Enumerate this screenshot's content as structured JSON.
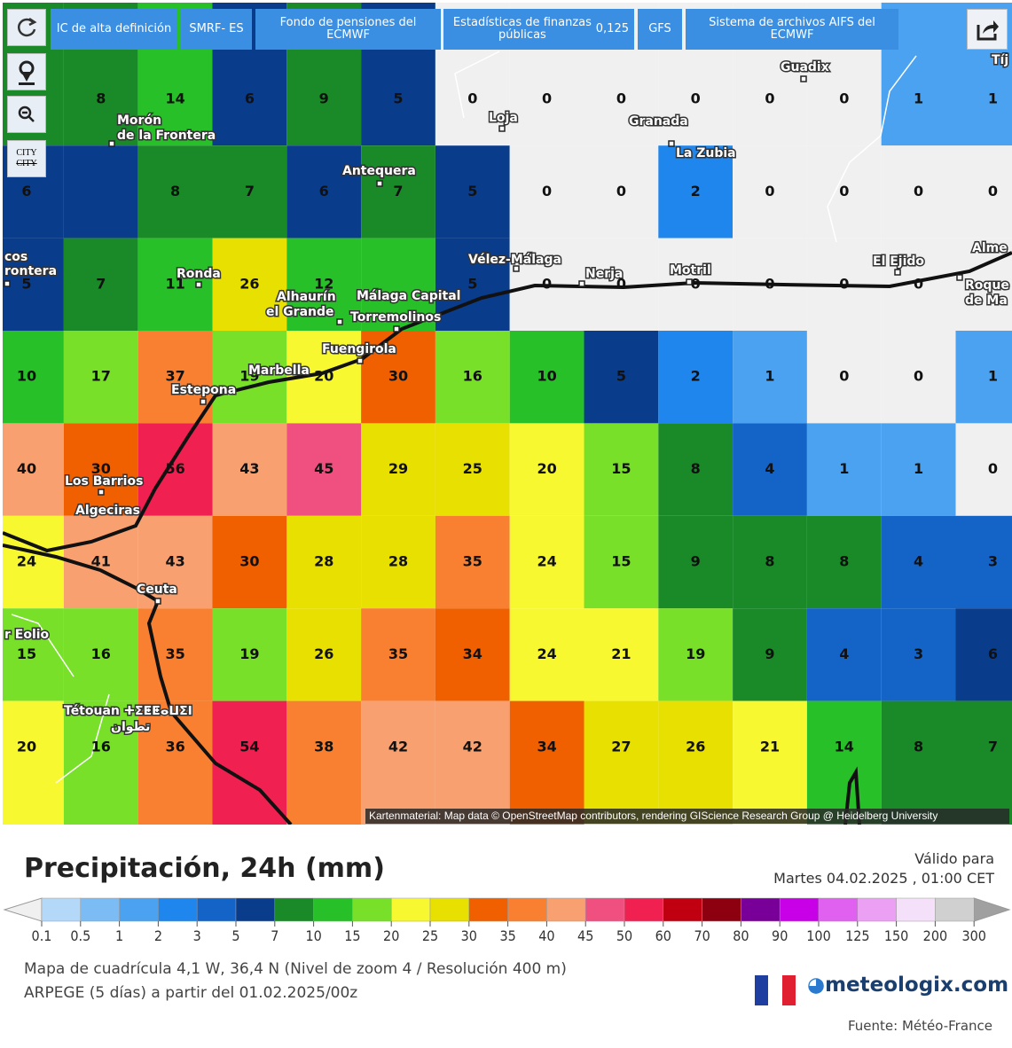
{
  "toolbar": {
    "tabs": [
      "IC de alta definición",
      "SMRF- ES",
      "Fondo de pensiones del ECMWF",
      [
        "Estadísticas de finanzas públicas",
        "0,125"
      ],
      "GFS",
      "Sistema de archivos AIFS del ECMWF"
    ],
    "city_button": [
      "CITY",
      "CITY"
    ]
  },
  "map": {
    "grid": [
      [
        null,
        8,
        14,
        6,
        9,
        5,
        0,
        0,
        0,
        0,
        0,
        0,
        1,
        1
      ],
      [
        6,
        null,
        8,
        7,
        6,
        7,
        5,
        0,
        0,
        2,
        0,
        0,
        0,
        0
      ],
      [
        5,
        7,
        11,
        26,
        12,
        null,
        5,
        0,
        0,
        0,
        0,
        0,
        0,
        null
      ],
      [
        10,
        17,
        37,
        19,
        20,
        30,
        16,
        10,
        5,
        2,
        1,
        0,
        0,
        1
      ],
      [
        40,
        30,
        56,
        43,
        45,
        29,
        25,
        20,
        15,
        8,
        4,
        1,
        1,
        0
      ],
      [
        24,
        41,
        43,
        30,
        28,
        28,
        35,
        24,
        15,
        9,
        8,
        8,
        4,
        3
      ],
      [
        15,
        16,
        35,
        19,
        26,
        35,
        34,
        24,
        21,
        19,
        9,
        4,
        3,
        6
      ],
      [
        20,
        16,
        36,
        54,
        38,
        42,
        42,
        34,
        27,
        26,
        21,
        14,
        8,
        7
      ]
    ],
    "cities": [
      [
        "Morón",
        "de la Frontera"
      ],
      [
        "Antequera"
      ],
      [
        "Loja"
      ],
      [
        "Granada"
      ],
      [
        "La Zubia"
      ],
      [
        "Guadix"
      ],
      [
        "Ronda"
      ],
      [
        "Alhaurín",
        "el Grande"
      ],
      [
        "Málaga Capital"
      ],
      [
        "Torremolinos"
      ],
      [
        "Vélez-Málaga"
      ],
      [
        "Nerja"
      ],
      [
        "Motril"
      ],
      [
        "El Ejido"
      ],
      [
        "Fuengirola"
      ],
      [
        "Marbella"
      ],
      [
        "Estepona"
      ],
      [
        "Los Barrios"
      ],
      [
        "Algeciras"
      ],
      [
        "Ceuta"
      ],
      [
        "Tétouan ⵜⵉⵟⵟⴰⵡⵉⵏ",
        "تطوان"
      ],
      [
        "cos",
        "rontera"
      ],
      [
        "Alme"
      ],
      [
        "Roque",
        "de Ma"
      ],
      [
        "Tíj"
      ],
      [
        "r Eolio"
      ]
    ],
    "attribution": "Kartenmaterial: Map data © OpenStreetMap contributors, rendering GIScience Research Group @ Heidelberg University"
  },
  "legend": {
    "title": "Precipitación, 24h (mm)",
    "ticks": [
      0.1,
      0.5,
      1,
      2,
      3,
      5,
      7,
      10,
      15,
      20,
      25,
      30,
      35,
      40,
      45,
      50,
      60,
      70,
      80,
      90,
      100,
      125,
      150,
      200,
      300
    ],
    "colors": [
      "#b4d8f8",
      "#7cbcf4",
      "#4aa2f0",
      "#1e86ec",
      "#1464c8",
      "#0a3c8c",
      "#1a8a28",
      "#28c028",
      "#78e028",
      "#f8f830",
      "#e8e000",
      "#f06000",
      "#f88030",
      "#f8a070",
      "#f05080",
      "#f02050",
      "#c00010",
      "#8c0010",
      "#780098",
      "#c800e8",
      "#e060f0",
      "#eca0f4",
      "#f4e0f8",
      "#d0d0d0"
    ],
    "below_color": "#f0f0f0",
    "above_color": "#a0a0a0"
  },
  "footer": {
    "valid_label": "Válido para",
    "valid_time": "Martes 04.02.2025 , 01:00 CET",
    "grid_info": "Mapa de cuadrícula 4,1 W, 36,4 N (Nivel de zoom 4 / Resolución 400 m)",
    "model_info": "ARPEGE (5 días) a partir del 01.02.2025/00z",
    "brand": "meteologix.com",
    "source": "Fuente: Météo-France"
  }
}
